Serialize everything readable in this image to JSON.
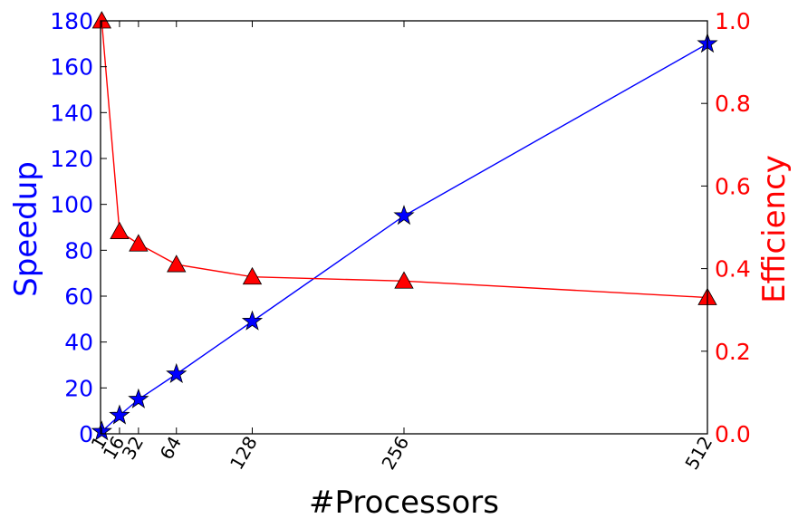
{
  "chart_data": {
    "type": "line",
    "x": [
      1,
      16,
      32,
      64,
      128,
      256,
      512
    ],
    "x_tick_labels": [
      "1",
      "16",
      "32",
      "64",
      "128",
      "256",
      "512"
    ],
    "xlabel": "#Processors",
    "xlim": [
      0,
      512
    ],
    "series": [
      {
        "name": "Speedup",
        "axis": "left",
        "color": "#0000ff",
        "marker": "star",
        "values": [
          1,
          8,
          15,
          26,
          49,
          95,
          170
        ]
      },
      {
        "name": "Efficiency",
        "axis": "right",
        "color": "#ff0000",
        "marker": "triangle",
        "values": [
          1.0,
          0.49,
          0.46,
          0.41,
          0.38,
          0.37,
          0.33
        ]
      }
    ],
    "ylabel_left": "Speedup",
    "ylim_left": [
      0,
      180
    ],
    "yticks_left": [
      "0",
      "20",
      "40",
      "60",
      "80",
      "100",
      "120",
      "140",
      "160",
      "180"
    ],
    "ylabel_right": "Efficiency",
    "ylim_right": [
      0,
      1.0
    ],
    "yticks_right": [
      "0.0",
      "0.2",
      "0.4",
      "0.6",
      "0.8",
      "1.0"
    ],
    "grid": false
  }
}
